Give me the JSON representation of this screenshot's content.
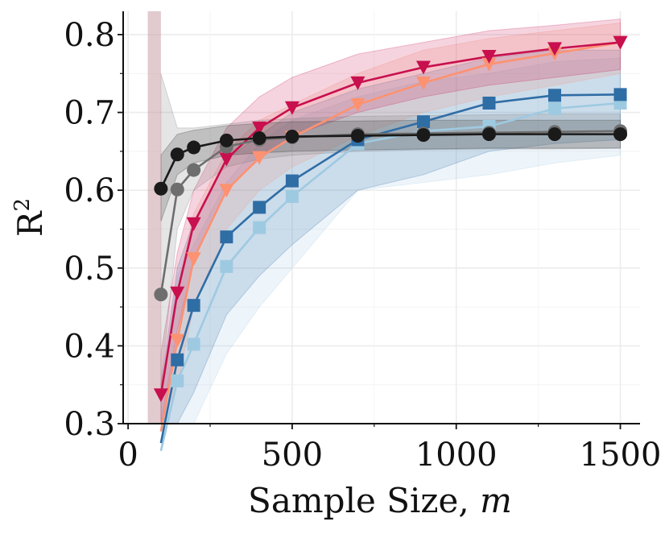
{
  "chart_data": {
    "type": "line",
    "xlabel": "Sample Size, ",
    "xlabel_math": "m",
    "ylabel": "R",
    "ylabel_sup": "2",
    "xlim": [
      -15,
      1560
    ],
    "ylim": [
      0.3,
      0.83
    ],
    "xticks": [
      0,
      500,
      1000,
      1500
    ],
    "yticks": [
      0.3,
      0.4,
      0.5,
      0.6,
      0.7,
      0.8
    ],
    "xtick_labels": [
      "0",
      "500",
      "1000",
      "1500"
    ],
    "ytick_labels": [
      "0.3",
      "0.4",
      "0.5",
      "0.6",
      "0.7",
      "0.8"
    ],
    "grid": true,
    "series": [
      {
        "name": "light-blue-squares",
        "color": "#9ecae1",
        "marker": "square",
        "x": [
          100,
          150,
          200,
          300,
          400,
          500,
          700,
          900,
          1100,
          1300,
          1500
        ],
        "y": [
          0.265,
          0.355,
          0.402,
          0.502,
          0.552,
          0.592,
          0.66,
          0.676,
          0.682,
          0.705,
          0.712
        ],
        "lower": [
          0.2,
          0.22,
          0.28,
          0.39,
          0.45,
          0.5,
          0.6,
          0.61,
          0.62,
          0.635,
          0.645
        ],
        "upper": [
          0.33,
          0.49,
          0.53,
          0.61,
          0.66,
          0.69,
          0.72,
          0.74,
          0.75,
          0.765,
          0.77
        ]
      },
      {
        "name": "dark-blue-squares",
        "color": "#2f6da5",
        "marker": "square",
        "x": [
          100,
          150,
          200,
          300,
          400,
          500,
          700,
          900,
          1100,
          1300,
          1500
        ],
        "y": [
          0.275,
          0.382,
          0.452,
          0.54,
          0.578,
          0.612,
          0.665,
          0.688,
          0.712,
          0.722,
          0.723
        ],
        "lower": [
          0.21,
          0.27,
          0.34,
          0.44,
          0.49,
          0.53,
          0.6,
          0.62,
          0.65,
          0.66,
          0.665
        ],
        "upper": [
          0.35,
          0.5,
          0.56,
          0.64,
          0.67,
          0.7,
          0.73,
          0.75,
          0.77,
          0.78,
          0.78
        ]
      },
      {
        "name": "salmon-triangles",
        "color": "#fc9272",
        "marker": "triangle-down",
        "x": [
          100,
          150,
          200,
          300,
          400,
          500,
          700,
          900,
          1100,
          1300,
          1500
        ],
        "y": [
          0.29,
          0.407,
          0.512,
          0.6,
          0.642,
          0.668,
          0.71,
          0.738,
          0.762,
          0.776,
          0.79
        ],
        "lower": [
          0.24,
          0.35,
          0.45,
          0.55,
          0.6,
          0.63,
          0.67,
          0.7,
          0.72,
          0.735,
          0.75
        ],
        "upper": [
          0.35,
          0.47,
          0.57,
          0.65,
          0.69,
          0.71,
          0.75,
          0.78,
          0.795,
          0.805,
          0.815
        ]
      },
      {
        "name": "crimson-triangles",
        "color": "#c8104e",
        "marker": "triangle-down",
        "x": [
          100,
          150,
          200,
          300,
          400,
          500,
          700,
          900,
          1100,
          1300,
          1500
        ],
        "y": [
          0.337,
          0.468,
          0.557,
          0.64,
          0.68,
          0.706,
          0.738,
          0.758,
          0.772,
          0.782,
          0.79
        ],
        "lower": [
          0.29,
          0.42,
          0.51,
          0.6,
          0.64,
          0.67,
          0.7,
          0.72,
          0.735,
          0.745,
          0.755
        ],
        "upper": [
          0.39,
          0.52,
          0.6,
          0.68,
          0.72,
          0.745,
          0.775,
          0.79,
          0.805,
          0.812,
          0.82
        ]
      },
      {
        "name": "gray-circles",
        "color": "#6e6e6e",
        "marker": "circle",
        "x": [
          100,
          150,
          200,
          300,
          400,
          500,
          700,
          900,
          1100,
          1300,
          1500
        ],
        "y": [
          0.466,
          0.601,
          0.626,
          0.656,
          0.665,
          0.668,
          0.672,
          0.673,
          0.674,
          0.675,
          0.676
        ],
        "lower": [
          0.35,
          0.55,
          0.6,
          0.63,
          0.64,
          0.645,
          0.65,
          0.652,
          0.653,
          0.653,
          0.654
        ],
        "upper": [
          0.75,
          0.68,
          0.68,
          0.685,
          0.69,
          0.692,
          0.695,
          0.696,
          0.697,
          0.698,
          0.698
        ]
      },
      {
        "name": "black-circles",
        "color": "#1a1a1a",
        "marker": "circle",
        "x": [
          100,
          150,
          200,
          300,
          400,
          500,
          700,
          900,
          1100,
          1300,
          1500
        ],
        "y": [
          0.602,
          0.646,
          0.655,
          0.664,
          0.667,
          0.669,
          0.67,
          0.671,
          0.672,
          0.672,
          0.672
        ],
        "lower": [
          0.56,
          0.62,
          0.635,
          0.645,
          0.648,
          0.65,
          0.652,
          0.653,
          0.654,
          0.654,
          0.654
        ],
        "upper": [
          0.645,
          0.672,
          0.677,
          0.683,
          0.686,
          0.688,
          0.689,
          0.69,
          0.69,
          0.69,
          0.69
        ]
      }
    ],
    "vertical_band": {
      "color": "#c8a0a5",
      "x_from": 60,
      "x_to": 100,
      "y_from": 0.3,
      "y_to": 0.83
    }
  }
}
